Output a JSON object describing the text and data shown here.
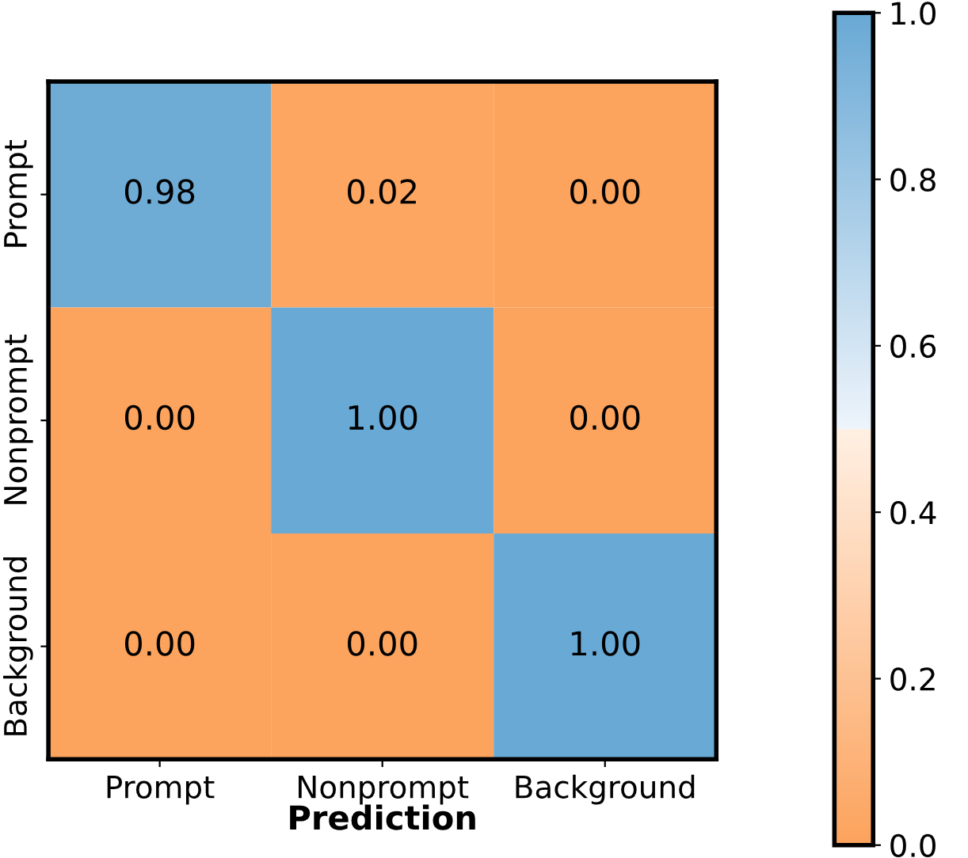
{
  "chart_data": {
    "type": "heatmap",
    "xlabel": "Prediction",
    "categories": [
      "Prompt",
      "Nonprompt",
      "Background"
    ],
    "y_categories": [
      "Prompt",
      "Nonprompt",
      "Background"
    ],
    "cells": [
      [
        0.98,
        0.02,
        0.0
      ],
      [
        0.0,
        1.0,
        0.0
      ],
      [
        0.0,
        0.0,
        1.0
      ]
    ],
    "cell_labels": [
      [
        "0.98",
        "0.02",
        "0.00"
      ],
      [
        "0.00",
        "1.00",
        "0.00"
      ],
      [
        "0.00",
        "0.00",
        "1.00"
      ]
    ],
    "colors": [
      "#fca35d",
      "#fff0e4",
      "#eef4fb",
      "#69a9d5"
    ],
    "clim": [
      0.0,
      1.0
    ],
    "cticks": [
      {
        "value": 0.0,
        "label": "0.0"
      },
      {
        "value": 0.2,
        "label": "0.2"
      },
      {
        "value": 0.4,
        "label": "0.4"
      },
      {
        "value": 0.6,
        "label": "0.6"
      },
      {
        "value": 0.8,
        "label": "0.8"
      },
      {
        "value": 1.0,
        "label": "1.0"
      }
    ]
  }
}
